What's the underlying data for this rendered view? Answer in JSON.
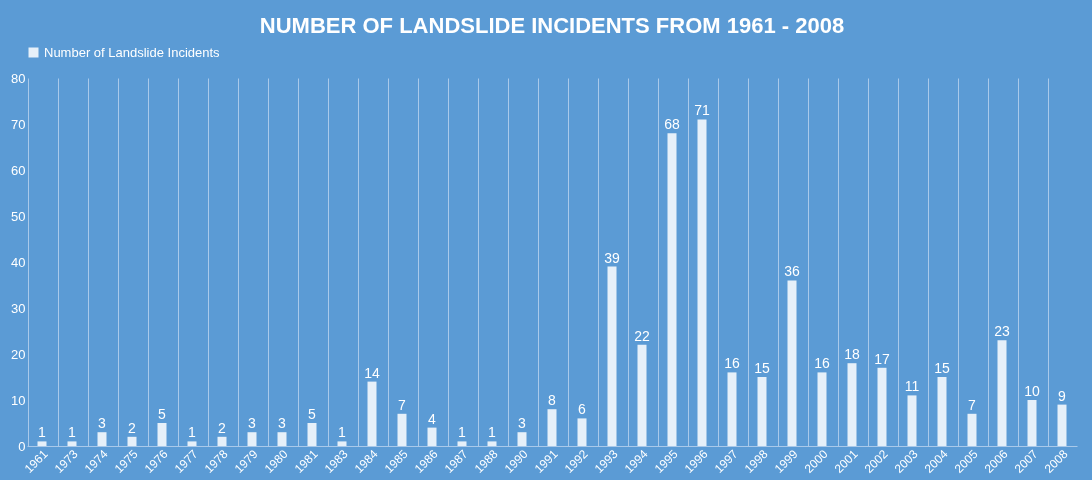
{
  "chart_data": {
    "type": "bar",
    "title": "NUMBER OF LANDSLIDE INCIDENTS FROM 1961 - 2008",
    "categories": [
      "1961",
      "1973",
      "1974",
      "1975",
      "1976",
      "1977",
      "1978",
      "1979",
      "1980",
      "1981",
      "1983",
      "1984",
      "1985",
      "1986",
      "1987",
      "1988",
      "1990",
      "1991",
      "1992",
      "1993",
      "1994",
      "1995",
      "1996",
      "1997",
      "1998",
      "1999",
      "2000",
      "2001",
      "2002",
      "2003",
      "2004",
      "2005",
      "2006",
      "2007",
      "2008"
    ],
    "series": [
      {
        "name": "Number of Landslide Incidents",
        "color": "#ffffff",
        "values": [
          1,
          1,
          3,
          2,
          5,
          1,
          2,
          3,
          3,
          5,
          1,
          14,
          7,
          4,
          1,
          1,
          3,
          8,
          6,
          39,
          22,
          68,
          71,
          16,
          15,
          36,
          16,
          18,
          17,
          11,
          15,
          7,
          23,
          10,
          9
        ]
      }
    ],
    "ylim": [
      0,
      80
    ],
    "yticks": [
      0,
      10,
      20,
      30,
      40,
      50,
      60,
      70,
      80
    ],
    "grid": "x",
    "legend": "top",
    "data_labels": true
  }
}
